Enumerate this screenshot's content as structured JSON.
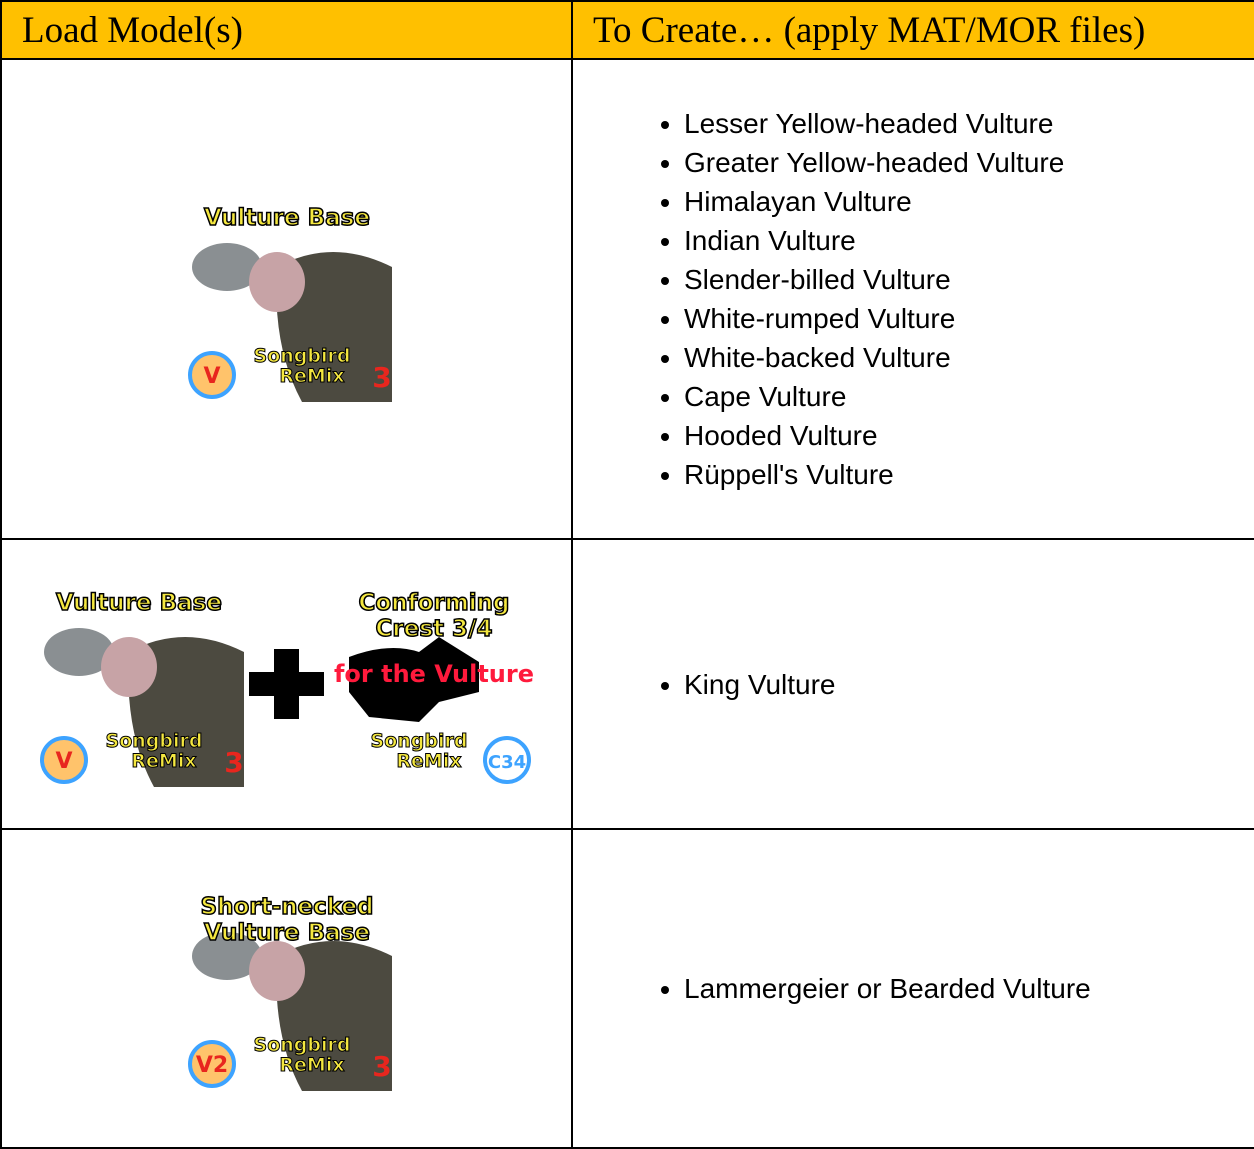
{
  "table": {
    "header": [
      "Load Model(s)",
      "To Create… (apply MAT/MOR files)"
    ],
    "rows": [
      {
        "models": [
          {
            "title": [
              "Vulture Base"
            ],
            "badge": "V",
            "brand": [
              "Songbird",
              "ReMix",
              "3"
            ]
          }
        ],
        "creates": [
          "Lesser Yellow-headed Vulture",
          "Greater Yellow-headed Vulture",
          "Himalayan Vulture",
          "Indian Vulture",
          "Slender-billed Vulture",
          "White-rumped Vulture",
          "White-backed Vulture",
          "Cape Vulture",
          "Hooded Vulture",
          "Rüppell's Vulture"
        ]
      },
      {
        "models": [
          {
            "title": [
              "Vulture Base"
            ],
            "badge": "V",
            "brand": [
              "Songbird",
              "ReMix",
              "3"
            ]
          },
          {
            "title": [
              "Conforming",
              "Crest 3/4"
            ],
            "subtitle": "for the Vulture",
            "badge": "C34",
            "brand": [
              "Songbird",
              "ReMix"
            ]
          }
        ],
        "creates": [
          "King Vulture"
        ]
      },
      {
        "models": [
          {
            "title": [
              "Short-necked",
              "Vulture Base"
            ],
            "badge": "V2",
            "brand": [
              "Songbird",
              "ReMix",
              "3"
            ]
          }
        ],
        "creates": [
          "Lammergeier or Bearded Vulture"
        ]
      }
    ]
  }
}
